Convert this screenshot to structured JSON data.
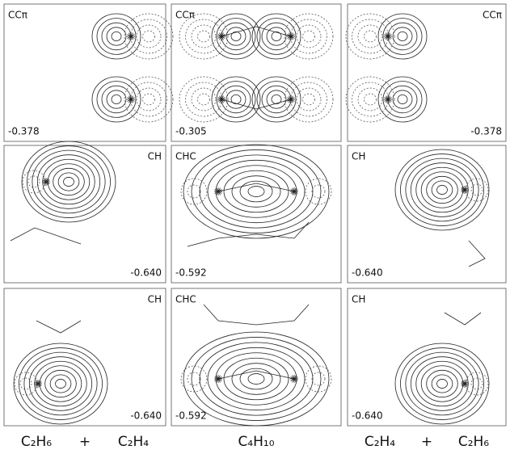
{
  "panels": [
    {
      "label": "CCπ",
      "energy": "-0.378"
    },
    {
      "label": "CCπ",
      "energy": "-0.305"
    },
    {
      "label": "CCπ",
      "energy": "-0.378"
    },
    {
      "label": "CH",
      "energy": "-0.640"
    },
    {
      "label": "CHC",
      "energy": "-0.592"
    },
    {
      "label": "CH",
      "energy": "-0.640"
    },
    {
      "label": "CH",
      "energy": "-0.640"
    },
    {
      "label": "CHC",
      "energy": "-0.592"
    },
    {
      "label": "CH",
      "energy": "-0.640"
    }
  ],
  "captions": [
    {
      "left": "C₂H₆",
      "op": "+",
      "right": "C₂H₄"
    },
    {
      "left": "C₄H₁₀"
    },
    {
      "left": "C₂H₄",
      "op": "+",
      "right": "C₂H₆"
    }
  ]
}
